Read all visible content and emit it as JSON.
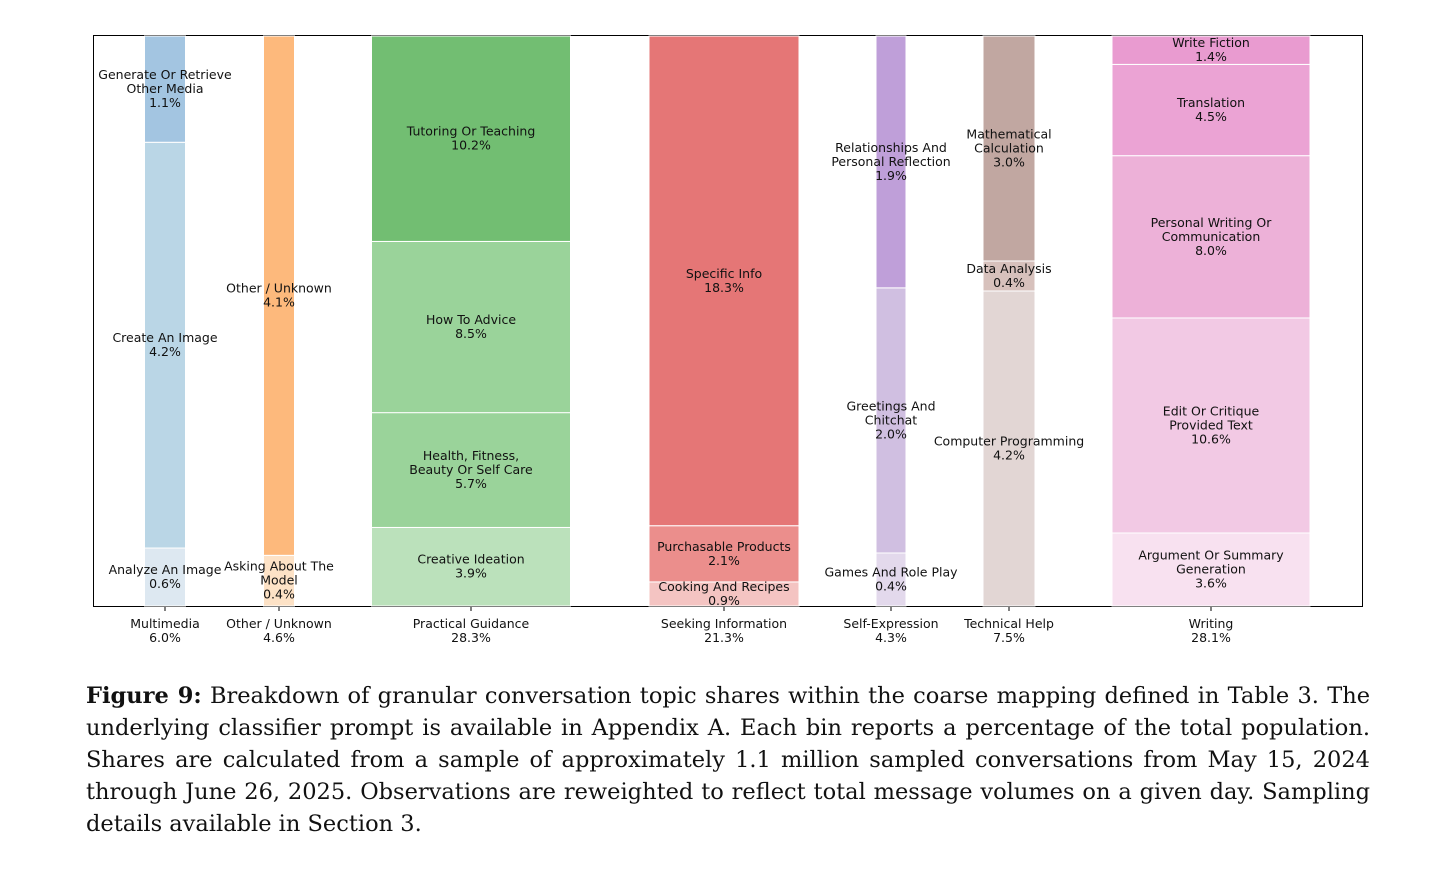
{
  "chart_data": {
    "type": "bar",
    "subtype": "stacked-variable-width",
    "categories": [
      {
        "name": "Multimedia",
        "total": "6.0%",
        "segments": [
          {
            "label": "Analyze An Image",
            "value": 0.6,
            "value_text": "0.6%",
            "color": "#dde8f1"
          },
          {
            "label": "Create An Image",
            "value": 4.2,
            "value_text": "4.2%",
            "color": "#bad6e6"
          },
          {
            "label": "Generate Or Retrieve Other Media",
            "value": 1.1,
            "value_text": "1.1%",
            "color": "#a3c5e1"
          }
        ]
      },
      {
        "name": "Other / Unknown",
        "total": "4.6%",
        "segments": [
          {
            "label": "Asking About The Model",
            "value": 0.4,
            "value_text": "0.4%",
            "color": "#fde2c6"
          },
          {
            "label": "Other / Unknown",
            "value": 4.1,
            "value_text": "4.1%",
            "color": "#fdb97c"
          }
        ]
      },
      {
        "name": "Practical Guidance",
        "total": "28.3%",
        "segments": [
          {
            "label": "Creative Ideation",
            "value": 3.9,
            "value_text": "3.9%",
            "color": "#bbe1bb"
          },
          {
            "label": "Health, Fitness, Beauty Or Self Care",
            "value": 5.7,
            "value_text": "5.7%",
            "color": "#9ad39a"
          },
          {
            "label": "How To Advice",
            "value": 8.5,
            "value_text": "8.5%",
            "color": "#9ad39a"
          },
          {
            "label": "Tutoring Or Teaching",
            "value": 10.2,
            "value_text": "10.2%",
            "color": "#72be72"
          }
        ]
      },
      {
        "name": "Seeking Information",
        "total": "21.3%",
        "segments": [
          {
            "label": "Cooking And Recipes",
            "value": 0.9,
            "value_text": "0.9%",
            "color": "#f4c4c2"
          },
          {
            "label": "Purchasable Products",
            "value": 2.1,
            "value_text": "2.1%",
            "color": "#eb8e8c"
          },
          {
            "label": "Specific Info",
            "value": 18.3,
            "value_text": "18.3%",
            "color": "#e57676"
          }
        ]
      },
      {
        "name": "Self-Expression",
        "total": "4.3%",
        "segments": [
          {
            "label": "Games And Role Play",
            "value": 0.4,
            "value_text": "0.4%",
            "color": "#e3d9ec"
          },
          {
            "label": "Greetings And Chitchat",
            "value": 2.0,
            "value_text": "2.0%",
            "color": "#d0bfe1"
          },
          {
            "label": "Relationships And Personal Reflection",
            "value": 1.9,
            "value_text": "1.9%",
            "color": "#bf9fd9"
          }
        ]
      },
      {
        "name": "Technical Help",
        "total": "7.5%",
        "segments": [
          {
            "label": "Computer Programming",
            "value": 4.2,
            "value_text": "4.2%",
            "color": "#e2d6d4"
          },
          {
            "label": "Data Analysis",
            "value": 0.4,
            "value_text": "0.4%",
            "color": "#d7c1bc"
          },
          {
            "label": "Mathematical Calculation",
            "value": 3.0,
            "value_text": "3.0%",
            "color": "#c1a7a1"
          }
        ]
      },
      {
        "name": "Writing",
        "total": "28.1%",
        "segments": [
          {
            "label": "Argument Or Summary Generation",
            "value": 3.6,
            "value_text": "3.6%",
            "color": "#f8e1f0"
          },
          {
            "label": "Edit Or Critique Provided Text",
            "value": 10.6,
            "value_text": "10.6%",
            "color": "#f2c9e4"
          },
          {
            "label": "Personal Writing Or Communication",
            "value": 8.0,
            "value_text": "8.0%",
            "color": "#edb1d8"
          },
          {
            "label": "Translation",
            "value": 4.5,
            "value_text": "4.5%",
            "color": "#eba3d4"
          },
          {
            "label": "Write Fiction",
            "value": 1.4,
            "value_text": "1.4%",
            "color": "#e99bd0"
          }
        ]
      }
    ],
    "grid": false,
    "legend": "none"
  },
  "caption": {
    "prefix": "Figure 9:",
    "text": "Breakdown of granular conversation topic shares within the coarse mapping defined in Table 3. The underlying classifier prompt is available in Appendix A. Each bin reports a percentage of the total population. Shares are calculated from a sample of approximately 1.1 million sampled conversations from May 15, 2024 through June 26, 2025. Observations are reweighted to reflect total message volumes on a given day. Sampling details available in Section 3."
  }
}
